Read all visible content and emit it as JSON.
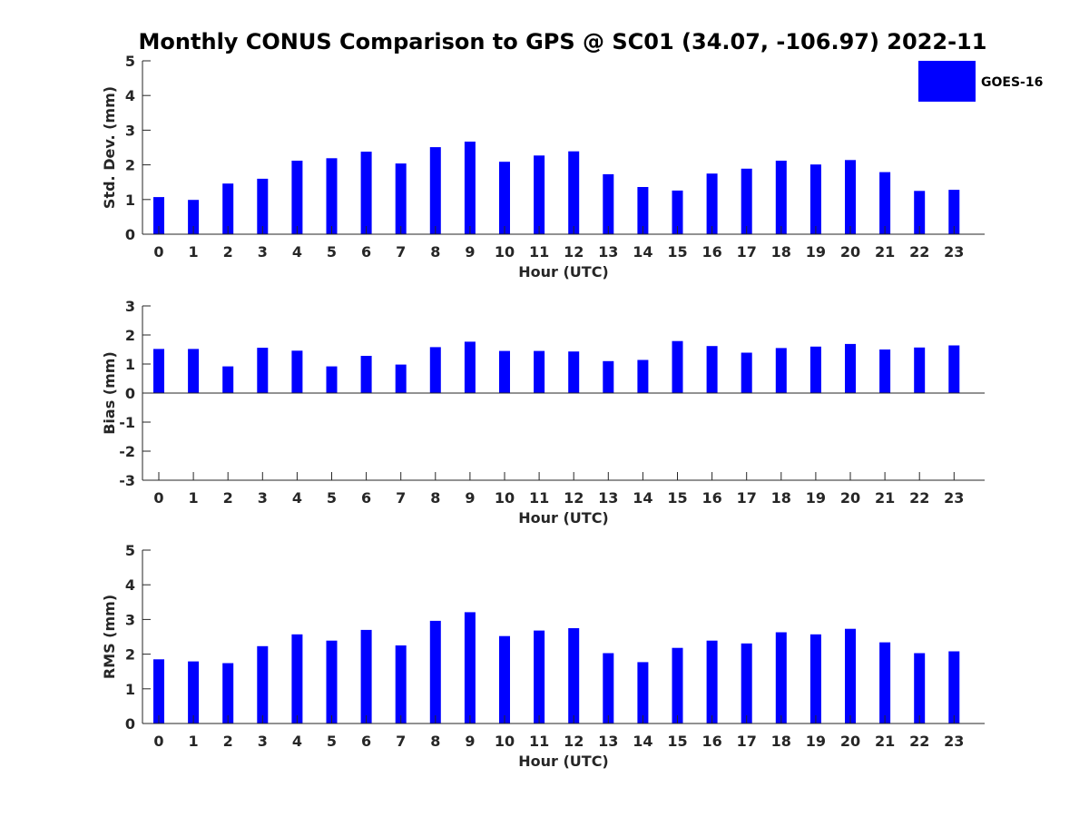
{
  "title": "Monthly CONUS Comparison to GPS @ SC01 (34.07, -106.97) 2022-11",
  "legend": {
    "label": "GOES-16",
    "color": "#0000ff"
  },
  "chart_data": [
    {
      "type": "bar",
      "title": "",
      "xlabel": "Hour (UTC)",
      "ylabel": "Std. Dev. (mm)",
      "categories": [
        "0",
        "1",
        "2",
        "3",
        "4",
        "5",
        "6",
        "7",
        "8",
        "9",
        "10",
        "11",
        "12",
        "13",
        "14",
        "15",
        "16",
        "17",
        "18",
        "19",
        "20",
        "21",
        "22",
        "23"
      ],
      "series": [
        {
          "name": "GOES-16",
          "values": [
            1.07,
            0.99,
            1.46,
            1.6,
            2.12,
            2.19,
            2.38,
            2.04,
            2.51,
            2.67,
            2.09,
            2.27,
            2.39,
            1.73,
            1.36,
            1.26,
            1.75,
            1.89,
            2.12,
            2.01,
            2.14,
            1.79,
            1.25,
            1.28
          ]
        }
      ],
      "ylim": [
        0,
        5
      ],
      "yticks": [
        "0",
        "1",
        "2",
        "3",
        "4",
        "5"
      ],
      "grid": false,
      "legend_position": "top-right-outside"
    },
    {
      "type": "bar",
      "title": "",
      "xlabel": "Hour (UTC)",
      "ylabel": "Bias (mm)",
      "categories": [
        "0",
        "1",
        "2",
        "3",
        "4",
        "5",
        "6",
        "7",
        "8",
        "9",
        "10",
        "11",
        "12",
        "13",
        "14",
        "15",
        "16",
        "17",
        "18",
        "19",
        "20",
        "21",
        "22",
        "23"
      ],
      "series": [
        {
          "name": "GOES-16",
          "values": [
            1.52,
            1.52,
            0.92,
            1.56,
            1.46,
            0.92,
            1.28,
            0.98,
            1.58,
            1.77,
            1.45,
            1.45,
            1.43,
            1.1,
            1.14,
            1.79,
            1.62,
            1.39,
            1.55,
            1.6,
            1.69,
            1.5,
            1.57,
            1.64
          ]
        }
      ],
      "ylim": [
        -3,
        3
      ],
      "yticks": [
        "-3",
        "-2",
        "-1",
        "0",
        "1",
        "2",
        "3"
      ],
      "grid": false,
      "zero_line": true
    },
    {
      "type": "bar",
      "title": "",
      "xlabel": "Hour (UTC)",
      "ylabel": "RMS (mm)",
      "categories": [
        "0",
        "1",
        "2",
        "3",
        "4",
        "5",
        "6",
        "7",
        "8",
        "9",
        "10",
        "11",
        "12",
        "13",
        "14",
        "15",
        "16",
        "17",
        "18",
        "19",
        "20",
        "21",
        "22",
        "23"
      ],
      "series": [
        {
          "name": "GOES-16",
          "values": [
            1.85,
            1.79,
            1.74,
            2.23,
            2.57,
            2.39,
            2.7,
            2.25,
            2.96,
            3.21,
            2.52,
            2.68,
            2.75,
            2.03,
            1.77,
            2.18,
            2.39,
            2.31,
            2.63,
            2.57,
            2.73,
            2.34,
            2.03,
            2.08
          ]
        }
      ],
      "ylim": [
        0,
        5
      ],
      "yticks": [
        "0",
        "1",
        "2",
        "3",
        "4",
        "5"
      ],
      "grid": false
    }
  ]
}
